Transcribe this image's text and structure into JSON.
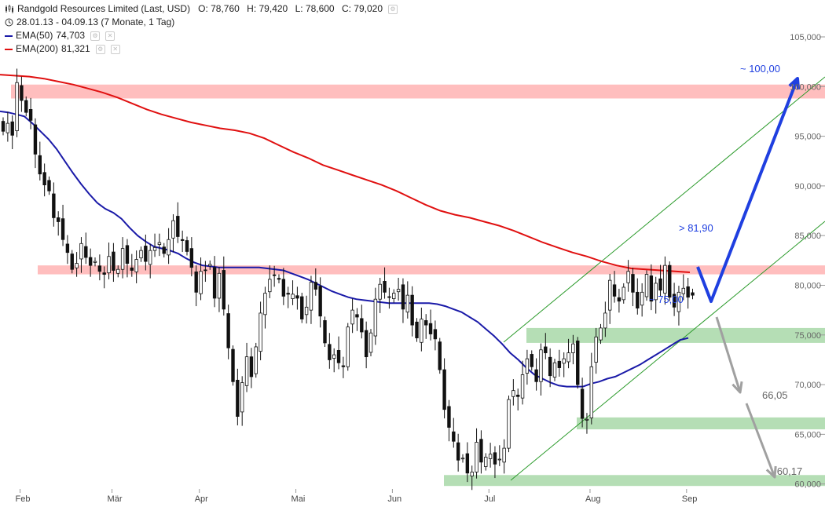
{
  "header": {
    "title": "Randgold Resources Limited (Last, USD)",
    "open": "O: 78,760",
    "high": "H: 79,420",
    "low": "L: 78,600",
    "close": "C: 79,020",
    "period": "28.01.13 - 04.09.13 (7 Monate, 1 Tag)",
    "ema50_label": "EMA(50)",
    "ema50_value": "74,703",
    "ema200_label": "EMA(200)",
    "ema200_value": "81,321"
  },
  "colors": {
    "ema50": "#1a1aa8",
    "ema200": "#e01010",
    "resistance_zone": "#ffb3b3",
    "support_zone": "#a8d8a8",
    "channel": "#2a9a2a",
    "bull_arrow": "#1f3fe0",
    "bear_arrow": "#a0a0a0",
    "candle": "#111111"
  },
  "chart_data": {
    "type": "candlestick",
    "ylim": [
      59.5,
      106.5
    ],
    "y_ticks": [
      "105,000",
      "100,000",
      "95,000",
      "90,000",
      "85,000",
      "80,000",
      "75,000",
      "70,000",
      "65,000",
      "60,000"
    ],
    "y_tick_values": [
      105,
      100,
      95,
      90,
      85,
      80,
      75,
      70,
      65,
      60
    ],
    "x_ticks": [
      "Feb",
      "Mär",
      "Apr",
      "Mai",
      "Jun",
      "Jul",
      "Aug",
      "Sep"
    ],
    "x_tick_index": [
      3,
      23,
      42,
      63,
      84,
      105,
      127,
      148
    ],
    "closes": [
      95.5,
      96.3,
      95.1,
      100.4,
      98.6,
      97.4,
      96.6,
      93.2,
      91.2,
      90.1,
      89.5,
      86.8,
      86.4,
      84.6,
      83.3,
      81.6,
      82.2,
      84.2,
      82.8,
      82.0,
      82.4,
      81.4,
      81.1,
      82.9,
      81.5,
      81.6,
      83.7,
      82.2,
      81.5,
      82.6,
      83.5,
      82.4,
      83.5,
      83.8,
      84.3,
      83.2,
      84.6,
      86.5,
      84.9,
      84.5,
      83.4,
      81.8,
      79.3,
      81.4,
      81.5,
      82.1,
      78.7,
      81.2,
      77.6,
      73.7,
      70.3,
      66.8,
      70.2,
      72.8,
      70.8,
      73.8,
      77.2,
      79.2,
      80.6,
      81.0,
      80.6,
      78.9,
      79.1,
      79.1,
      78.7,
      76.6,
      77.8,
      80.3,
      79.6,
      76.9,
      74.2,
      72.5,
      73.0,
      72.2,
      71.8,
      75.8,
      77.5,
      76.8,
      75.3,
      72.8,
      75.2,
      78.6,
      80.1,
      79.3,
      78.8,
      79.2,
      79.6,
      77.6,
      79.0,
      76.0,
      74.7,
      76.6,
      76.0,
      75.1,
      74.6,
      71.5,
      67.5,
      65.7,
      64.3,
      62.4,
      62.6,
      61.1,
      61.2,
      64.2,
      62.2,
      62.7,
      63.0,
      62.0,
      62.5,
      63.6,
      68.5,
      69.4,
      68.8,
      71.0,
      72.6,
      71.8,
      70.3,
      73.5,
      73.2,
      70.9,
      72.2,
      71.7,
      72.6,
      73.2,
      74.1,
      70.0,
      66.6,
      66.5,
      71.8,
      74.8,
      75.7,
      77.2,
      80.5,
      78.9,
      78.4,
      79.8,
      81.4,
      79.3,
      77.7,
      79.3,
      81.1,
      78.4,
      80.2,
      79.5,
      82.0,
      78.8,
      77.8,
      79.3,
      79.7,
      78.8,
      79.0
    ],
    "ema50": [
      97.5,
      97.4,
      97.2,
      97.0,
      96.3,
      95.5,
      94.7,
      93.7,
      92.5,
      91.3,
      90.2,
      89.2,
      88.3,
      87.7,
      87.3,
      86.7,
      85.8,
      85.0,
      84.4,
      83.9,
      83.7,
      83.5,
      83.2,
      82.7,
      82.3,
      82.0,
      81.9,
      81.8,
      81.8,
      81.8,
      81.8,
      81.8,
      81.8,
      81.7,
      81.6,
      81.5,
      81.2,
      80.9,
      80.6,
      80.2,
      79.8,
      79.4,
      79.1,
      78.8,
      78.6,
      78.5,
      78.4,
      78.3,
      78.2,
      78.2,
      78.2,
      78.2,
      78.2,
      78.2,
      78.1,
      77.9,
      77.6,
      77.3,
      76.8,
      76.3,
      75.6,
      74.9,
      74.1,
      73.2,
      72.5,
      71.7,
      71.0,
      70.6,
      70.2,
      69.9,
      69.8,
      69.8,
      69.8,
      70.1,
      70.3,
      70.6,
      70.8,
      71.2,
      71.6,
      72.0,
      72.5,
      73.0,
      73.5,
      74.0,
      74.5,
      74.7
    ],
    "ema200": [
      101.2,
      101.1,
      101.0,
      100.8,
      100.5,
      100.2,
      99.8,
      99.4,
      98.9,
      98.3,
      97.7,
      97.2,
      96.8,
      96.4,
      96.1,
      95.8,
      95.6,
      95.3,
      94.8,
      94.1,
      93.4,
      92.8,
      92.1,
      91.6,
      91.1,
      90.6,
      90.1,
      89.5,
      88.8,
      88.1,
      87.5,
      87.1,
      86.8,
      86.4,
      86.0,
      85.5,
      84.9,
      84.3,
      83.8,
      83.3,
      82.9,
      82.4,
      82.0,
      81.7,
      81.6,
      81.5,
      81.4,
      81.3
    ],
    "annotations": [
      {
        "label": "~ 100,00",
        "value": 100.0
      },
      {
        "label": "> 81,90",
        "value": 81.9
      },
      {
        "label": "~ 75,00",
        "value": 75.0
      },
      {
        "label": "66,05",
        "value": 66.05
      },
      {
        "label": "60,17",
        "value": 60.17
      }
    ],
    "zones": [
      {
        "kind": "resistance",
        "from": 98.8,
        "to": 100.2
      },
      {
        "kind": "resistance",
        "from": 81.1,
        "to": 82.0
      },
      {
        "kind": "support",
        "from": 74.2,
        "to": 75.7
      },
      {
        "kind": "support",
        "from": 65.5,
        "to": 66.7
      },
      {
        "kind": "support",
        "from": 59.8,
        "to": 60.9
      }
    ]
  }
}
